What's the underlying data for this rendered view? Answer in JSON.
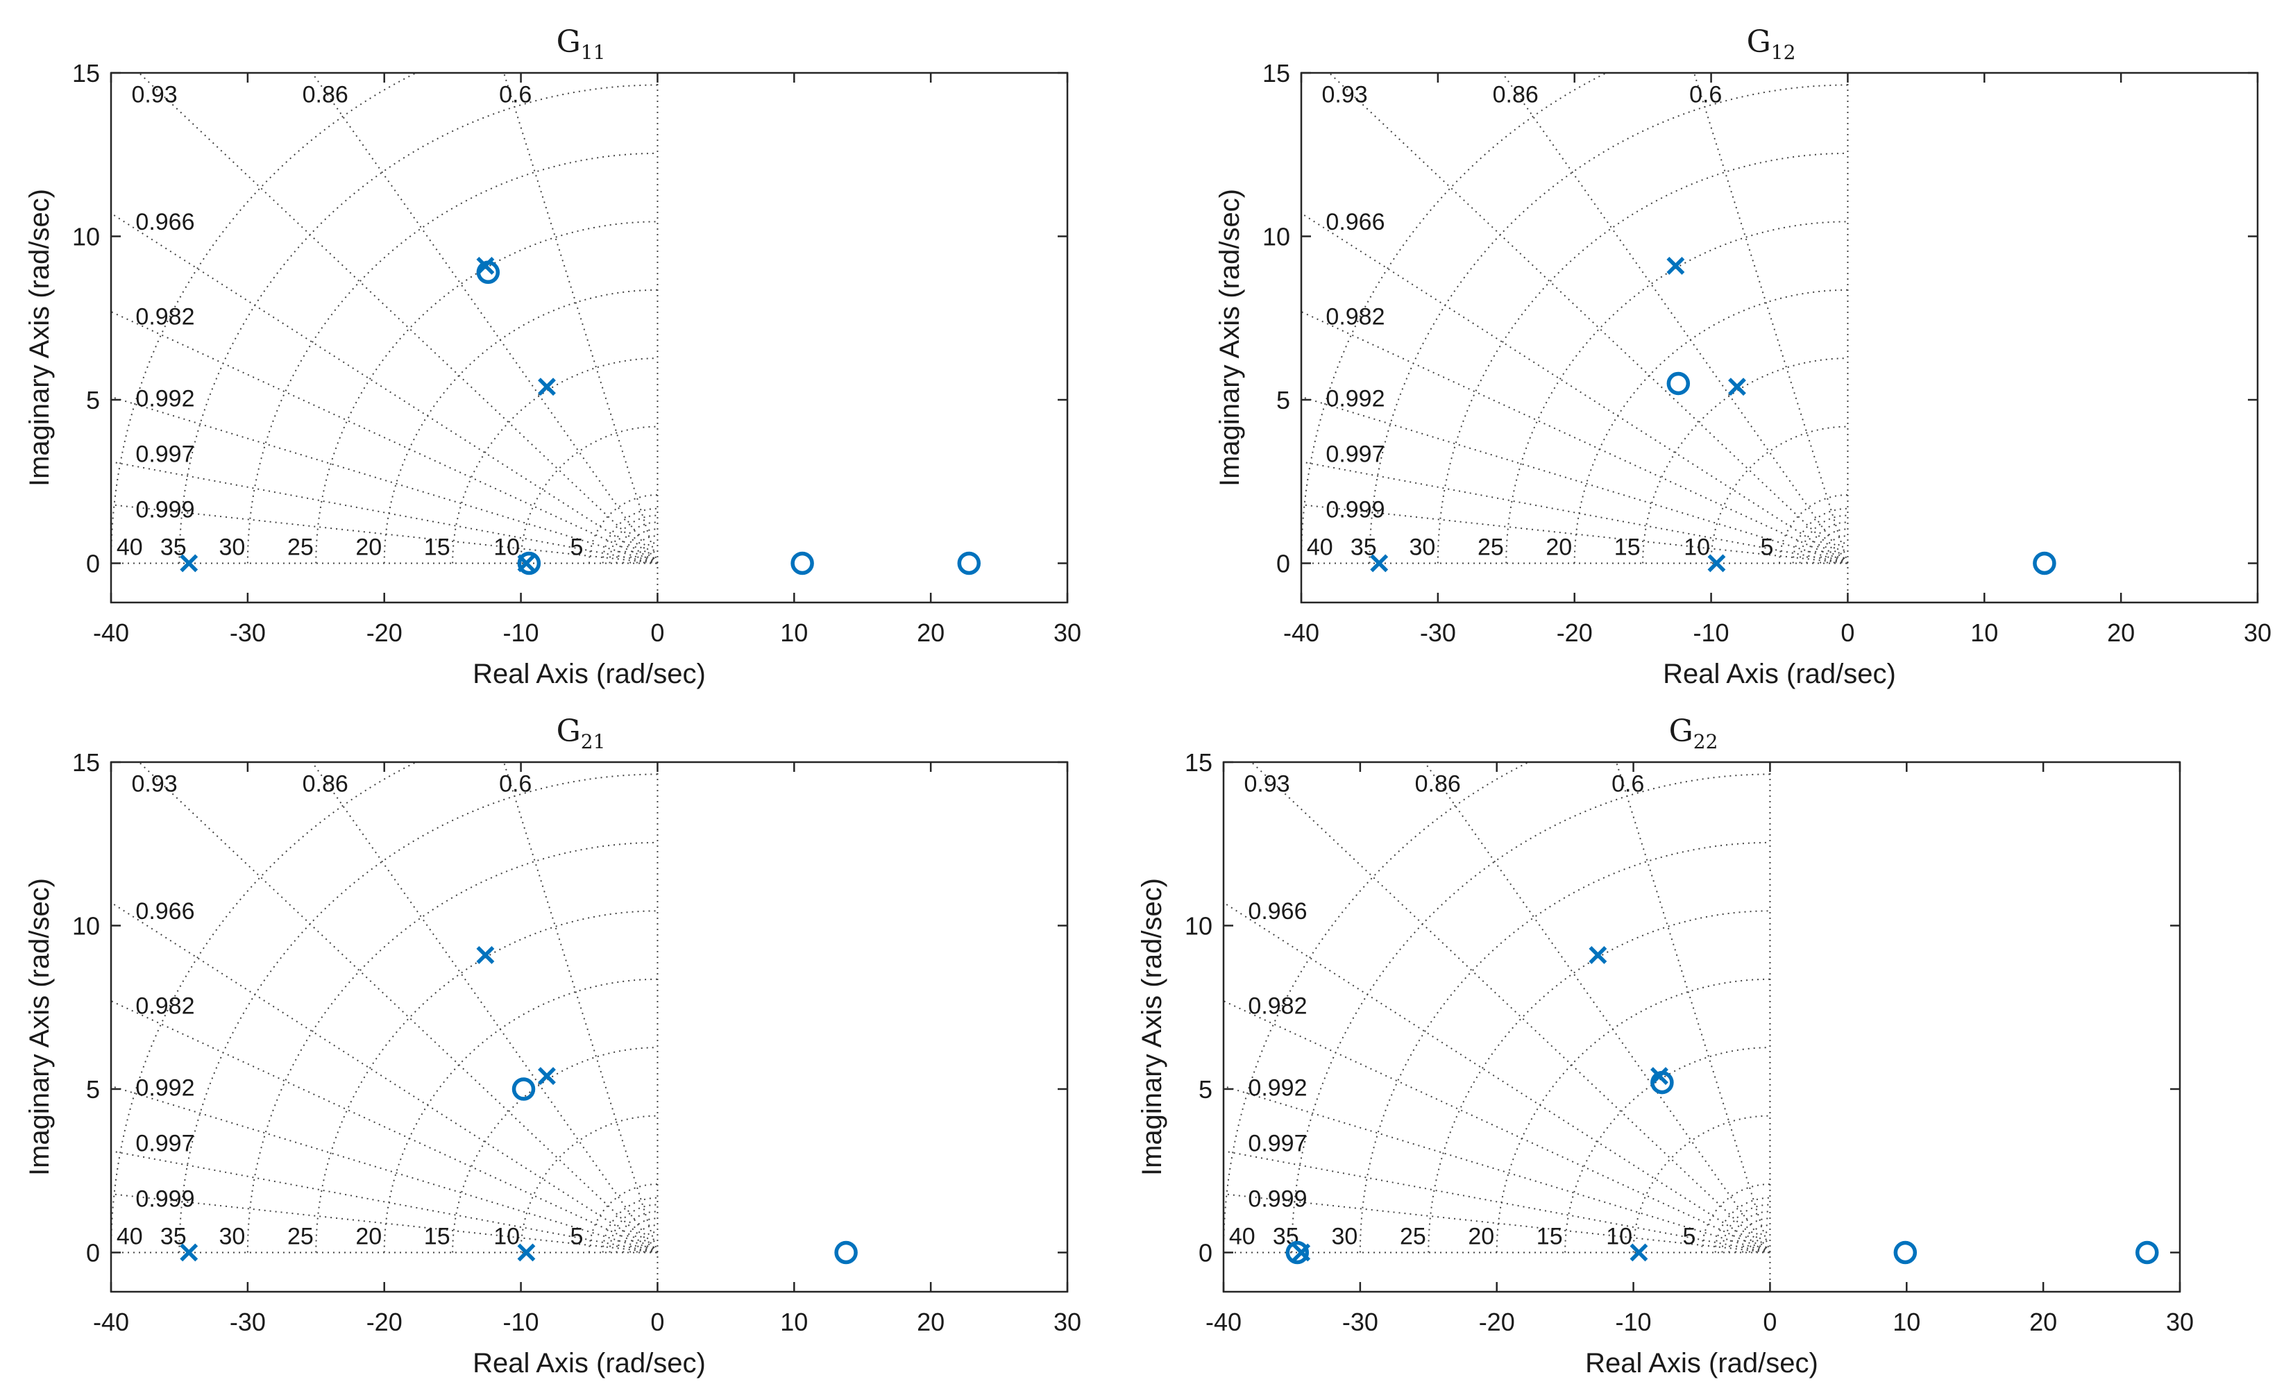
{
  "figure": {
    "color": "#0072BD",
    "legend_note": ""
  },
  "chart_data": [
    {
      "type": "scatter",
      "subtype": "pole-zero map",
      "title": "G",
      "title_subscript": "11",
      "xlabel": "Real Axis (rad/sec)",
      "ylabel": "Imaginary Axis (rad/sec)",
      "xlim": [
        -40,
        30
      ],
      "ylim": [
        -1.2,
        15
      ],
      "xticks": [
        "-40",
        "-30",
        "-20",
        "-10",
        "0",
        "10",
        "20",
        "30"
      ],
      "yticks": [
        "0",
        "5",
        "10",
        "15"
      ],
      "damping_labels": [
        "0.93",
        "0.86",
        "0.6",
        "0.966",
        "0.982",
        "0.992",
        "0.997",
        "0.999"
      ],
      "frequency_labels": [
        "40",
        "35",
        "30",
        "25",
        "20",
        "15",
        "10",
        "5"
      ],
      "poles": [
        {
          "re": -12.6,
          "im": 9.1
        },
        {
          "re": -8.1,
          "im": 5.4
        },
        {
          "re": -34.3,
          "im": 0
        },
        {
          "re": -9.6,
          "im": 0
        }
      ],
      "zeros": [
        {
          "re": -12.4,
          "im": 8.9
        },
        {
          "re": -9.4,
          "im": 0
        },
        {
          "re": 10.6,
          "im": 0
        },
        {
          "re": 22.8,
          "im": 0
        }
      ]
    },
    {
      "type": "scatter",
      "subtype": "pole-zero map",
      "title": "G",
      "title_subscript": "12",
      "xlabel": "Real Axis (rad/sec)",
      "ylabel": "Imaginary Axis (rad/sec)",
      "xlim": [
        -40,
        30
      ],
      "ylim": [
        -1.2,
        15
      ],
      "xticks": [
        "-40",
        "-30",
        "-20",
        "-10",
        "0",
        "10",
        "20",
        "30"
      ],
      "yticks": [
        "0",
        "5",
        "10",
        "15"
      ],
      "damping_labels": [
        "0.93",
        "0.86",
        "0.6",
        "0.966",
        "0.982",
        "0.992",
        "0.997",
        "0.999"
      ],
      "frequency_labels": [
        "40",
        "35",
        "30",
        "25",
        "20",
        "15",
        "10",
        "5"
      ],
      "poles": [
        {
          "re": -12.6,
          "im": 9.1
        },
        {
          "re": -8.1,
          "im": 5.4
        },
        {
          "re": -34.3,
          "im": 0
        },
        {
          "re": -9.6,
          "im": 0
        }
      ],
      "zeros": [
        {
          "re": -12.4,
          "im": 5.5
        },
        {
          "re": 14.4,
          "im": 0
        }
      ]
    },
    {
      "type": "scatter",
      "subtype": "pole-zero map",
      "title": "G",
      "title_subscript": "21",
      "xlabel": "Real Axis (rad/sec)",
      "ylabel": "Imaginary Axis (rad/sec)",
      "xlim": [
        -40,
        30
      ],
      "ylim": [
        -1.2,
        15
      ],
      "xticks": [
        "-40",
        "-30",
        "-20",
        "-10",
        "0",
        "10",
        "20",
        "30"
      ],
      "yticks": [
        "0",
        "5",
        "10",
        "15"
      ],
      "damping_labels": [
        "0.93",
        "0.86",
        "0.6",
        "0.966",
        "0.982",
        "0.992",
        "0.997",
        "0.999"
      ],
      "frequency_labels": [
        "40",
        "35",
        "30",
        "25",
        "20",
        "15",
        "10",
        "5"
      ],
      "poles": [
        {
          "re": -12.6,
          "im": 9.1
        },
        {
          "re": -8.1,
          "im": 5.4
        },
        {
          "re": -34.3,
          "im": 0
        },
        {
          "re": -9.6,
          "im": 0
        }
      ],
      "zeros": [
        {
          "re": -9.8,
          "im": 5.0
        },
        {
          "re": 13.8,
          "im": 0
        }
      ]
    },
    {
      "type": "scatter",
      "subtype": "pole-zero map",
      "title": "G",
      "title_subscript": "22",
      "xlabel": "Real Axis (rad/sec)",
      "ylabel": "Imaginary Axis (rad/sec)",
      "xlim": [
        -40,
        30
      ],
      "ylim": [
        -1.2,
        15
      ],
      "xticks": [
        "-40",
        "-30",
        "-20",
        "-10",
        "0",
        "10",
        "20",
        "30"
      ],
      "yticks": [
        "0",
        "5",
        "10",
        "15"
      ],
      "damping_labels": [
        "0.93",
        "0.86",
        "0.6",
        "0.966",
        "0.982",
        "0.992",
        "0.997",
        "0.999"
      ],
      "frequency_labels": [
        "40",
        "35",
        "30",
        "25",
        "20",
        "15",
        "10",
        "5"
      ],
      "poles": [
        {
          "re": -12.6,
          "im": 9.1
        },
        {
          "re": -8.1,
          "im": 5.4
        },
        {
          "re": -34.3,
          "im": 0
        },
        {
          "re": -9.6,
          "im": 0
        }
      ],
      "zeros": [
        {
          "re": -7.9,
          "im": 5.2
        },
        {
          "re": -34.6,
          "im": 0
        },
        {
          "re": 9.9,
          "im": 0
        },
        {
          "re": 27.6,
          "im": 0
        }
      ]
    }
  ]
}
